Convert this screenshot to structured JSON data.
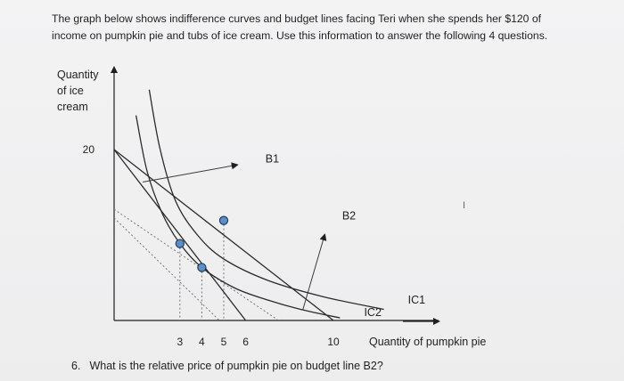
{
  "intro": {
    "line1": "The graph below shows indifference curves and budget lines facing Teri when she spends her $120 of",
    "line2": "income on pumpkin pie and tubs of ice cream. Use this information to answer the following 4 questions."
  },
  "question": {
    "number": "6.",
    "text": "What is the relative price of pumpkin pie on budget line B2?"
  },
  "chart_data": {
    "type": "line",
    "ylabel_lines": [
      "Quantity",
      "of ice",
      "cream"
    ],
    "xlabel": "Quantity of pumpkin pie",
    "y_ticks": [
      {
        "value": 20,
        "label": "20"
      }
    ],
    "x_ticks": [
      {
        "value": 3,
        "label": "3"
      },
      {
        "value": 4,
        "label": "4"
      },
      {
        "value": 5,
        "label": "5"
      },
      {
        "value": 6,
        "label": "6"
      },
      {
        "value": 10,
        "label": "10"
      }
    ],
    "xlim": [
      0,
      13.5
    ],
    "ylim": [
      0,
      29
    ],
    "budget_lines": [
      {
        "name": "B1",
        "points": [
          [
            0,
            20
          ],
          [
            6,
            0
          ]
        ]
      },
      {
        "name": "B2",
        "points": [
          [
            0,
            20
          ],
          [
            10,
            0
          ]
        ]
      }
    ],
    "indifference_curves": [
      {
        "name": "IC1",
        "points": [
          [
            1.6,
            27
          ],
          [
            2.1,
            20
          ],
          [
            2.8,
            14
          ],
          [
            3.8,
            10
          ],
          [
            5.0,
            7.2
          ],
          [
            7.0,
            4.7
          ],
          [
            9.5,
            2.8
          ],
          [
            12.3,
            1.3
          ]
        ]
      },
      {
        "name": "IC2",
        "points": [
          [
            1.0,
            24
          ],
          [
            1.5,
            17.5
          ],
          [
            2.2,
            12.5
          ],
          [
            3.0,
            9.0
          ],
          [
            4.0,
            6.2
          ],
          [
            5.5,
            3.8
          ],
          [
            7.0,
            2.4
          ],
          [
            8.5,
            1.3
          ],
          [
            10.3,
            0.3
          ]
        ]
      }
    ],
    "dashed_lines": [
      {
        "points": [
          [
            0,
            13
          ],
          [
            7.5,
            0
          ]
        ]
      },
      {
        "points": [
          [
            0,
            12
          ],
          [
            4.8,
            0
          ]
        ]
      }
    ],
    "optimum_points": [
      {
        "x": 3.0,
        "y": 9.0
      },
      {
        "x": 4.0,
        "y": 6.2
      },
      {
        "x": 5.0,
        "y": 11.7
      }
    ],
    "annotations": [
      {
        "label": "B1",
        "target": "B1",
        "arrow_from": [
          1.3,
          16.2
        ],
        "arrow_to": [
          5.6,
          18.2
        ],
        "text_at": [
          6.9,
          18.5
        ]
      },
      {
        "label": "B2",
        "target": "B2",
        "arrow_from": [
          8.6,
          1.2
        ],
        "arrow_to": [
          9.6,
          10.0
        ],
        "text_at": [
          10.4,
          11.8
        ]
      },
      {
        "label": "IC1",
        "target": "IC1",
        "text_at": [
          13.4,
          2.0
        ]
      },
      {
        "label": "IC2",
        "target": "IC2",
        "text_at": [
          11.4,
          0.5
        ]
      }
    ],
    "stray_mark": "I"
  }
}
